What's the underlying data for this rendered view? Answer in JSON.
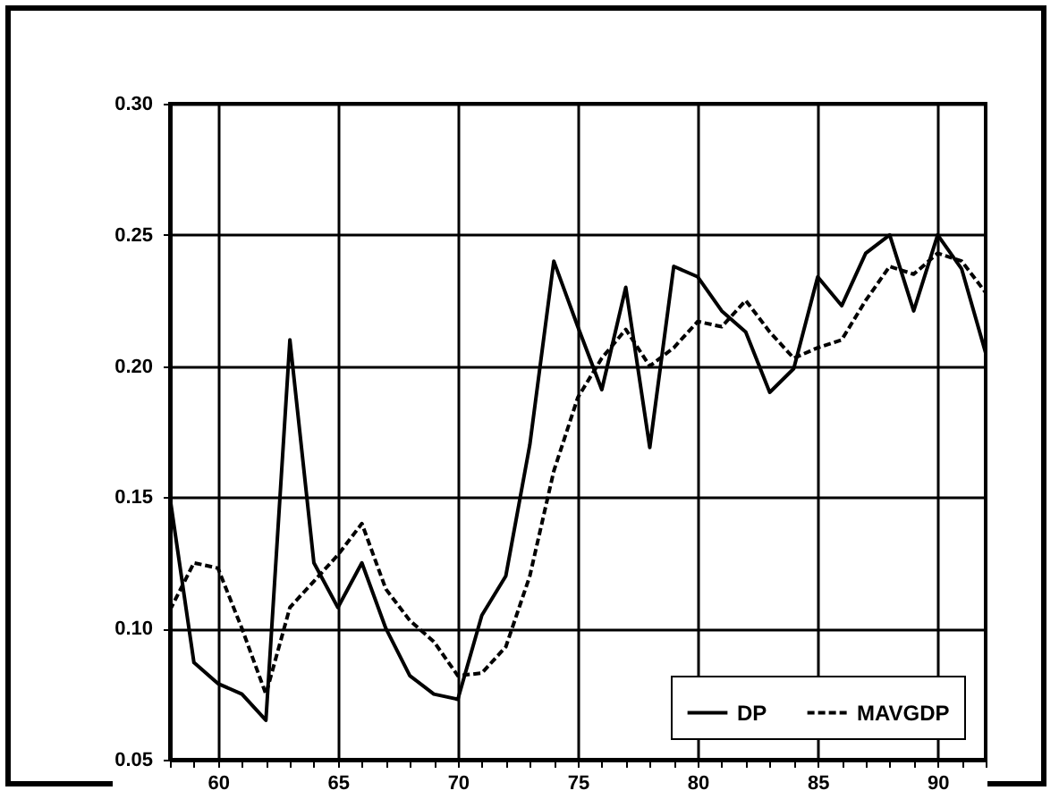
{
  "chart_data": {
    "type": "line",
    "x": [
      58,
      59,
      60,
      61,
      62,
      63,
      64,
      65,
      66,
      67,
      68,
      69,
      70,
      71,
      72,
      73,
      74,
      75,
      76,
      77,
      78,
      79,
      80,
      81,
      82,
      83,
      84,
      85,
      86,
      87,
      88,
      89,
      90,
      91,
      92
    ],
    "series": [
      {
        "name": "DP",
        "color": "#000000",
        "line_style": "solid",
        "values": [
          0.15,
          0.087,
          0.079,
          0.075,
          0.065,
          0.21,
          0.125,
          0.108,
          0.125,
          0.1,
          0.082,
          0.075,
          0.073,
          0.105,
          0.12,
          0.17,
          0.24,
          0.215,
          0.191,
          0.23,
          0.169,
          0.238,
          0.234,
          0.221,
          0.213,
          0.19,
          0.199,
          0.234,
          0.223,
          0.243,
          0.25,
          0.221,
          0.25,
          0.237,
          0.205
        ]
      },
      {
        "name": "MAVGDP",
        "color": "#000000",
        "line_style": "dashed",
        "values": [
          0.107,
          0.125,
          0.123,
          0.1,
          0.075,
          0.108,
          0.118,
          0.128,
          0.14,
          0.115,
          0.103,
          0.095,
          0.082,
          0.083,
          0.093,
          0.12,
          0.16,
          0.188,
          0.203,
          0.214,
          0.2,
          0.207,
          0.217,
          0.215,
          0.225,
          0.213,
          0.203,
          0.207,
          0.21,
          0.225,
          0.238,
          0.235,
          0.243,
          0.24,
          0.228
        ]
      }
    ],
    "xlim": [
      58,
      92
    ],
    "xticks": [
      {
        "value": 58,
        "label": null
      },
      {
        "value": 59,
        "label": null
      },
      60,
      {
        "value": 61,
        "label": null
      },
      {
        "value": 62,
        "label": null
      },
      {
        "value": 63,
        "label": null
      },
      {
        "value": 64,
        "label": null
      },
      65,
      {
        "value": 66,
        "label": null
      },
      {
        "value": 67,
        "label": null
      },
      {
        "value": 68,
        "label": null
      },
      {
        "value": 69,
        "label": null
      },
      70,
      {
        "value": 71,
        "label": null
      },
      {
        "value": 72,
        "label": null
      },
      {
        "value": 73,
        "label": null
      },
      {
        "value": 74,
        "label": null
      },
      75,
      {
        "value": 76,
        "label": null
      },
      {
        "value": 77,
        "label": null
      },
      {
        "value": 78,
        "label": null
      },
      {
        "value": 79,
        "label": null
      },
      80,
      {
        "value": 81,
        "label": null
      },
      {
        "value": 82,
        "label": null
      },
      {
        "value": 83,
        "label": null
      },
      {
        "value": 84,
        "label": null
      },
      85,
      {
        "value": 86,
        "label": null
      },
      {
        "value": 87,
        "label": null
      },
      {
        "value": 88,
        "label": null
      },
      {
        "value": 89,
        "label": null
      },
      90,
      {
        "value": 91,
        "label": null
      },
      {
        "value": 92,
        "label": null
      }
    ],
    "ylim": [
      0.05,
      0.3
    ],
    "yticks": [
      0.05,
      {
        "value": 0.1,
        "label": "0.10"
      },
      0.15,
      {
        "value": 0.2,
        "label": "0.20"
      },
      0.25,
      {
        "value": 0.3,
        "label": "0.30"
      }
    ],
    "grid": true,
    "legend": "bottom right"
  }
}
